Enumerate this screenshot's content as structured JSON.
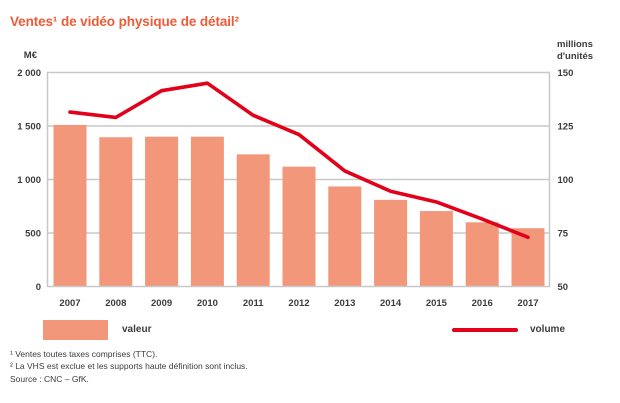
{
  "title": "Ventes¹ de vidéo physique de détail²",
  "colors": {
    "accent_orange": "#ed5b38",
    "bar": "#f2977a",
    "line": "#e2001a",
    "grid": "#c8c8c8",
    "text": "#3c3c3b"
  },
  "chart_data": {
    "type": "combo-bar-line",
    "title": "Ventes¹ de vidéo physique de détail²",
    "categories": [
      "2007",
      "2008",
      "2009",
      "2010",
      "2011",
      "2012",
      "2013",
      "2014",
      "2015",
      "2016",
      "2017"
    ],
    "series": [
      {
        "name": "valeur",
        "type": "bar",
        "axis": "left",
        "unit": "M€",
        "values": [
          1510,
          1395,
          1400,
          1400,
          1235,
          1120,
          935,
          810,
          705,
          600,
          545
        ]
      },
      {
        "name": "volume",
        "type": "line",
        "axis": "right",
        "unit": "millions d'unités",
        "values": [
          131.5,
          129,
          141.5,
          145,
          130,
          121,
          104,
          94.5,
          89.5,
          81.5,
          73
        ]
      }
    ],
    "left_axis": {
      "label": "M€",
      "min": 0,
      "max": 2000,
      "ticks": [
        {
          "label": "2 000",
          "value": 2000
        },
        {
          "label": "1 500",
          "value": 1500
        },
        {
          "label": "1 000",
          "value": 1000
        },
        {
          "label": "500",
          "value": 500
        },
        {
          "label": "0",
          "value": 0
        }
      ]
    },
    "right_axis": {
      "label": "millions d'unités",
      "min": 50,
      "max": 150,
      "ticks": [
        {
          "label": "150",
          "value": 150
        },
        {
          "label": "125",
          "value": 125
        },
        {
          "label": "100",
          "value": 100
        },
        {
          "label": "75",
          "value": 75
        },
        {
          "label": "50",
          "value": 50
        }
      ]
    },
    "grid": true,
    "legend_position": "bottom"
  },
  "legend": {
    "valeur_label": "valeur",
    "volume_label": "volume"
  },
  "footnotes": [
    "¹ Ventes toutes taxes comprises (TTC).",
    "² La VHS est exclue et les supports haute définition sont inclus.",
    "Source : CNC – GfK."
  ]
}
